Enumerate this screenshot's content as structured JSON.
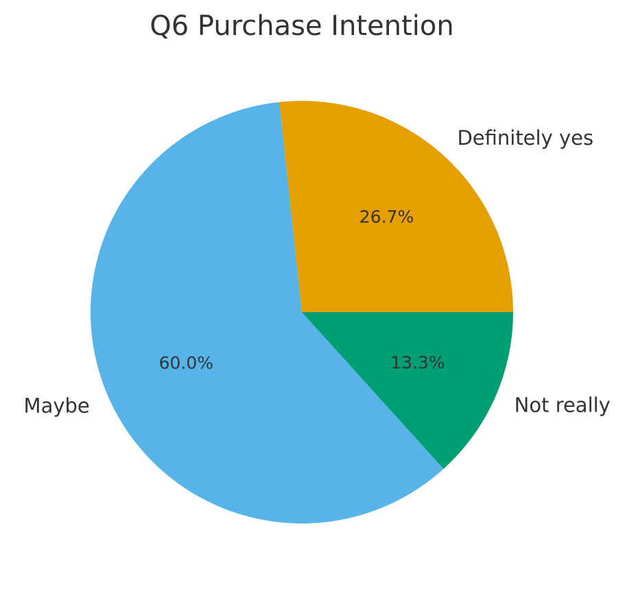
{
  "chart_data": {
    "type": "pie",
    "title": "Q6 Purchase Intention",
    "categories": [
      "Definitely yes",
      "Maybe",
      "Not really"
    ],
    "values": [
      26.7,
      60.0,
      13.3
    ],
    "value_labels": [
      "26.7%",
      "60.0%",
      "13.3%"
    ],
    "colors": [
      "#E69F00",
      "#56B4E9",
      "#009E73"
    ]
  }
}
